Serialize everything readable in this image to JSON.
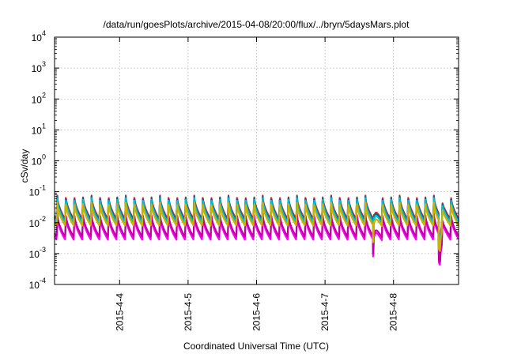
{
  "chart_data": {
    "type": "line",
    "title": "/data/run/goesPlots/archive/2015-04-08/20:00/flux/../bryn/5daysMars.plot",
    "xlabel": "Coordinated Universal Time (UTC)",
    "ylabel": "cSv/day",
    "y_scale": "log",
    "ylim_exponents": [
      -4,
      4
    ],
    "y_tick_labels": [
      {
        "base": "10",
        "exp": "4"
      },
      {
        "base": "10",
        "exp": "3"
      },
      {
        "base": "10",
        "exp": "2"
      },
      {
        "base": "10",
        "exp": "1"
      },
      {
        "base": "10",
        "exp": "0"
      },
      {
        "base": "10",
        "exp": "-1"
      },
      {
        "base": "10",
        "exp": "-2"
      },
      {
        "base": "10",
        "exp": "-3"
      },
      {
        "base": "10",
        "exp": "-4"
      }
    ],
    "x_tick_labels": [
      "2015-4-4",
      "2015-4-5",
      "2015-4-6",
      "2015-4-7",
      "2015-4-8"
    ],
    "xlim_days": [
      3.05,
      8.95
    ],
    "x_tick_days": [
      4,
      5,
      6,
      7,
      8
    ],
    "grid": true,
    "legend": "none",
    "pattern": {
      "period_days": 0.125,
      "first_spike_day": 3.08,
      "dropouts": [
        {
          "day": 7.72,
          "depth_factor": 0.28
        },
        {
          "day": 8.68,
          "depth_factor": 0.12
        }
      ]
    },
    "series": [
      {
        "color": "#e81010",
        "peak": 0.075,
        "trough": 0.013
      },
      {
        "color": "#20a020",
        "peak": 0.07,
        "trough": 0.0115
      },
      {
        "color": "#2040e0",
        "peak": 0.068,
        "trough": 0.011
      },
      {
        "color": "#ff00ff",
        "peak": 0.017,
        "trough": 0.0028
      },
      {
        "color": "#00c0d0",
        "peak": 0.062,
        "trough": 0.01
      },
      {
        "color": "#c000a0",
        "peak": 0.02,
        "trough": 0.0035
      },
      {
        "color": "#c8b400",
        "peak": 0.045,
        "trough": 0.008
      }
    ]
  }
}
